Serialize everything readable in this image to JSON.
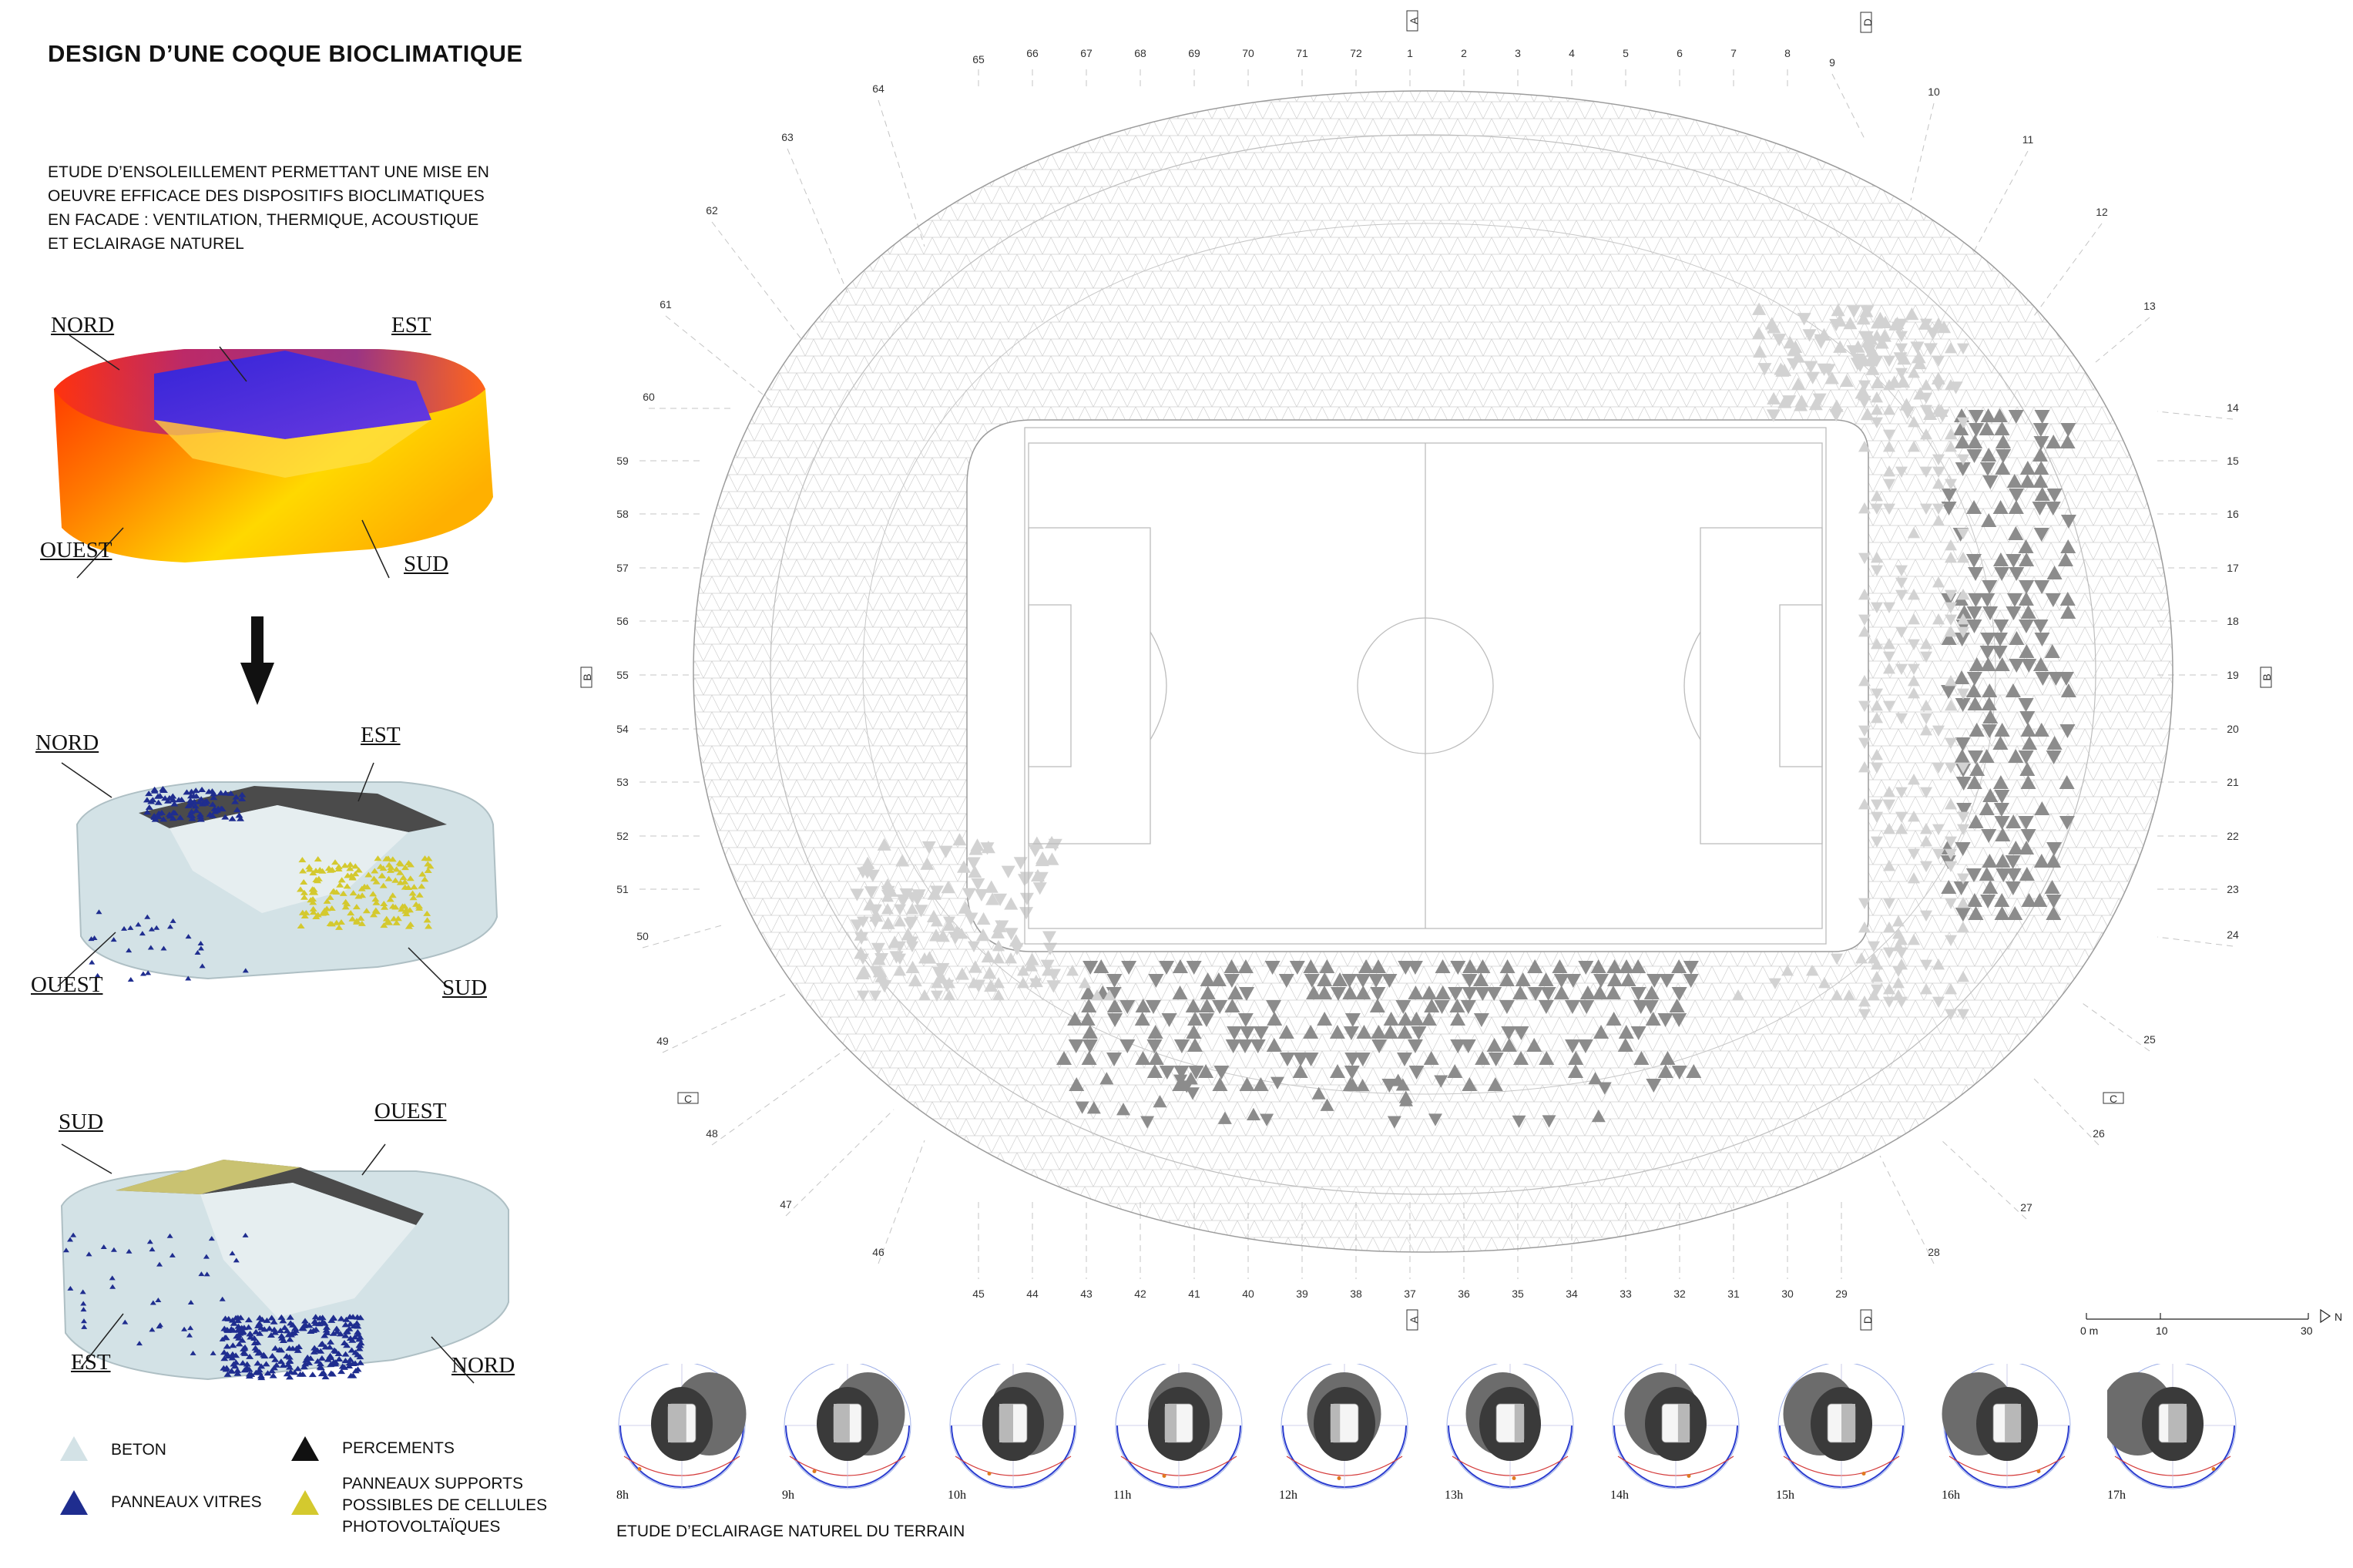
{
  "title": "DESIGN D’UNE COQUE BIOCLIMATIQUE",
  "intro_lines": [
    "ETUDE D’ENSOLEILLEMENT PERMETTANT UNE MISE EN",
    "OEUVRE EFFICACE DES DISPOSITIFS BIOCLIMATIQUES",
    "EN FACADE : VENTILATION, THERMIQUE, ACOUSTIQUE",
    "ET ECLAIRAGE NATUREL"
  ],
  "heatmap_labels": {
    "north": "NORD",
    "east": "EST",
    "west": "OUEST",
    "south": "SUD"
  },
  "view1_labels": {
    "north": "NORD",
    "east": "EST",
    "west": "OUEST",
    "south": "SUD"
  },
  "view2_labels": {
    "south": "SUD",
    "west": "OUEST",
    "east": "EST",
    "north": "NORD"
  },
  "legend": {
    "beton": "BETON",
    "vitres": "PANNEAUX VITRES",
    "percements": "PERCEMENTS",
    "pv_lines": [
      "PANNEAUX SUPPORTS",
      "POSSIBLES DE CELLULES",
      "PHOTOVOLTAÏQUES"
    ]
  },
  "colors": {
    "beton": "#d3e2e6",
    "vitres": "#1f2d8f",
    "percements": "#111111",
    "pv": "#d4c92e",
    "panel_dark": "#8c8c8c",
    "panel_light": "#d2d2d2",
    "grid": "#c9c9c9"
  },
  "plan": {
    "axis_top": [
      "65",
      "66",
      "67",
      "68",
      "69",
      "70",
      "71",
      "72",
      "1",
      "2",
      "3",
      "4",
      "5",
      "6",
      "7",
      "8"
    ],
    "axis_bottom": [
      "45",
      "44",
      "43",
      "42",
      "41",
      "40",
      "39",
      "38",
      "37",
      "36",
      "35",
      "34",
      "33",
      "32",
      "31",
      "30",
      "29"
    ],
    "axis_left": [
      "59",
      "58",
      "57",
      "56",
      "55",
      "54",
      "53",
      "52",
      "51"
    ],
    "axis_right": [
      "15",
      "16",
      "17",
      "18",
      "19",
      "20",
      "21",
      "22",
      "23"
    ],
    "axis_diag": [
      "64",
      "63",
      "62",
      "61",
      "60",
      "50",
      "49",
      "48",
      "47",
      "46",
      "9",
      "10",
      "11",
      "12",
      "13",
      "14",
      "24",
      "25",
      "26",
      "27",
      "28"
    ],
    "sections": {
      "a": "A",
      "b": "B",
      "c": "C",
      "d": "D"
    },
    "scale": {
      "zero": "0 m",
      "ten": "10",
      "thirty": "30",
      "north": "N"
    }
  },
  "sun_study": {
    "caption": "ETUDE D’ECLAIRAGE NATUREL DU TERRAIN",
    "hours": [
      "8h",
      "9h",
      "10h",
      "11h",
      "12h",
      "13h",
      "14h",
      "15h",
      "16h",
      "17h"
    ]
  }
}
